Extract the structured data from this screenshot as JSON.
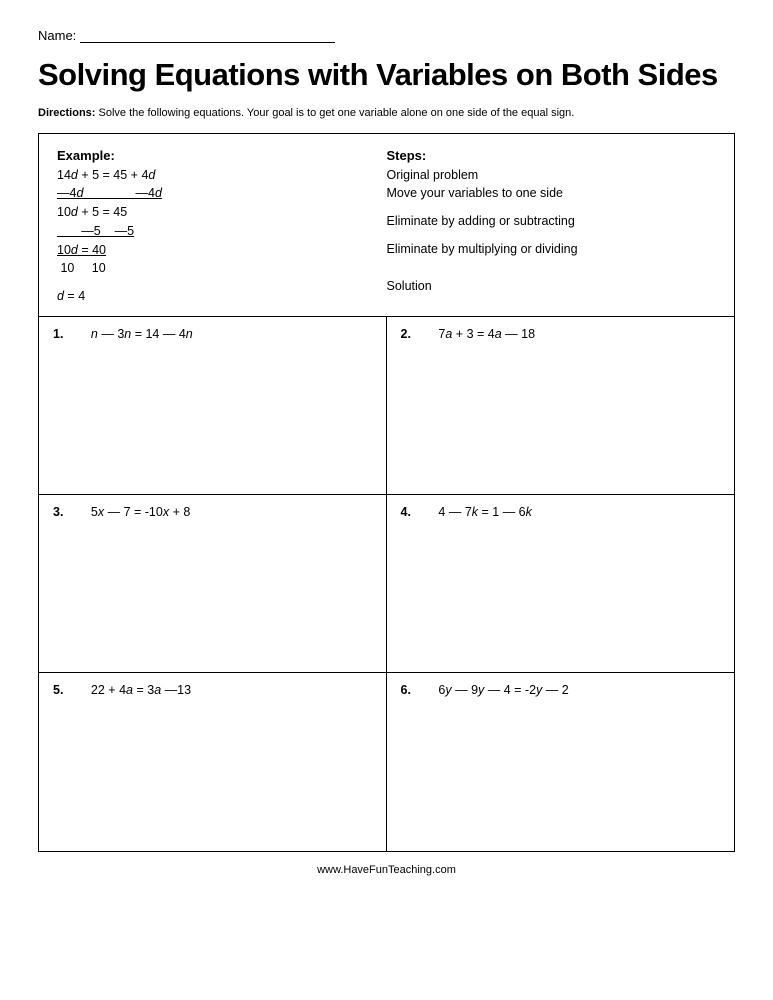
{
  "name_label": "Name:",
  "title": "Solving Equations with Variables on Both Sides",
  "directions_label": "Directions:",
  "directions_text": " Solve the following equations. Your goal is to get one variable alone on one side of the equal sign.",
  "example": {
    "heading": "Example:",
    "line1a": "14",
    "line1b": "d",
    "line1c": " + 5 = 45 + 4",
    "line1d": "d",
    "line2a": "—4",
    "line2b": "d",
    "line2c": "               —4",
    "line2d": "d",
    "line3a": "10",
    "line3b": "d",
    "line3c": " + 5 = 45",
    "line4": "       —5    —5",
    "line5a": "10",
    "line5b": "d",
    "line5c": " = 40",
    "line6": " 10     10",
    "line7a": "d",
    "line7b": " = 4"
  },
  "steps": {
    "heading": "Steps:",
    "s1": "Original problem",
    "s2": "Move your variables to one side",
    "s3": "Eliminate by adding or subtracting",
    "s4": "Eliminate by multiplying or dividing",
    "s5": "Solution"
  },
  "problems": [
    {
      "num": "1.",
      "pre": "n",
      "mid": " — 3",
      "var2": "n",
      "post": " = 14 — 4",
      "var3": "n",
      "tail": ""
    },
    {
      "num": "2.",
      "pre": "7",
      "var1": "a",
      "mid": " + 3 = 4",
      "var2": "a",
      "post": " — 18",
      "var3": "",
      "tail": ""
    },
    {
      "num": "3.",
      "pre": "5",
      "var1": "x",
      "mid": " — 7 = -10",
      "var2": "x",
      "post": " + 8",
      "var3": "",
      "tail": ""
    },
    {
      "num": "4.",
      "pre": "4 — 7",
      "var1": "k",
      "mid": " = 1 — 6",
      "var2": "k",
      "post": "",
      "var3": "",
      "tail": ""
    },
    {
      "num": "5.",
      "pre": "22 + 4",
      "var1": "a",
      "mid": " = 3",
      "var2": "a",
      "post": " —13",
      "var3": "",
      "tail": ""
    },
    {
      "num": "6.",
      "pre": "6",
      "var1": "y",
      "mid": " — 9",
      "var2": "y",
      "post": " — 4 = -2",
      "var3": "y",
      "tail": " — 2"
    }
  ],
  "footer": "www.HaveFunTeaching.com",
  "colors": {
    "text": "#000000",
    "background": "#ffffff",
    "border": "#000000"
  }
}
